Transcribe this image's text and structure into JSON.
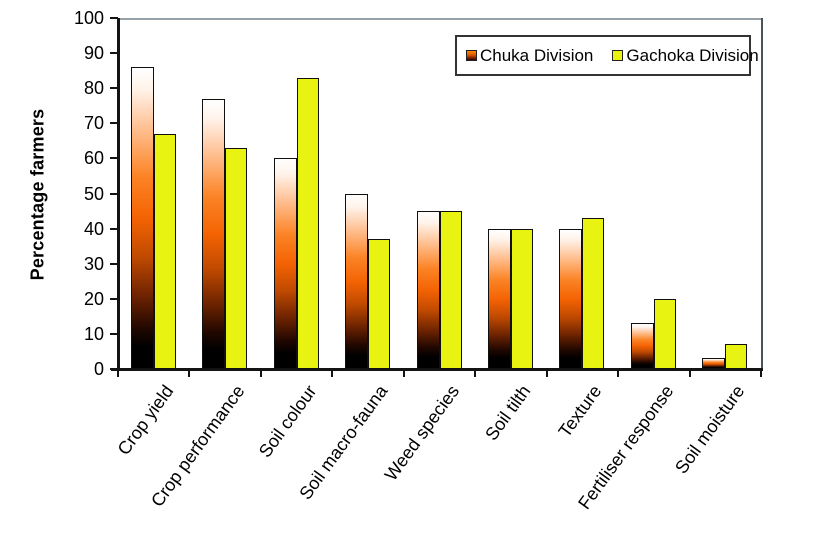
{
  "figure": {
    "background": "#ffffff",
    "axis_color": "#141414",
    "frame_top_color": "#96a1a8",
    "frame_right_color": "#4a5359"
  },
  "chart_data": {
    "type": "bar",
    "title": "",
    "xlabel": "",
    "ylabel": "Percentage farmers",
    "ylim": [
      0,
      100
    ],
    "ytick_step": 10,
    "grid": false,
    "legend_position": "top-right",
    "bar_outline": "#101010",
    "categories": [
      "Crop yield",
      "Crop performance",
      "Soil colour",
      "Soil macro-fauna",
      "Weed species",
      "Soil tilth",
      "Texture",
      "Fertiliser response",
      "Soil moisture"
    ],
    "series": [
      {
        "name": "Chuka Division",
        "values": [
          86,
          77,
          60,
          50,
          45,
          40,
          40,
          13,
          3
        ],
        "fill": "gradient",
        "gradient_stops": [
          {
            "pos": 0,
            "color": "#ffffff"
          },
          {
            "pos": 7,
            "color": "#fff3ea"
          },
          {
            "pos": 20,
            "color": "#ffc092"
          },
          {
            "pos": 36,
            "color": "#fb8426"
          },
          {
            "pos": 50,
            "color": "#f46303"
          },
          {
            "pos": 63,
            "color": "#c04a00"
          },
          {
            "pos": 76,
            "color": "#6e2300"
          },
          {
            "pos": 87,
            "color": "#200700"
          },
          {
            "pos": 93,
            "color": "#000000"
          },
          {
            "pos": 100,
            "color": "#000000"
          }
        ],
        "legend_swatch_gradient": [
          "#ff8a00",
          "#e05500",
          "#300000"
        ]
      },
      {
        "name": "Gachoka Division",
        "values": [
          67,
          63,
          83,
          37,
          45,
          40,
          43,
          20,
          7
        ],
        "fill": "solid",
        "color": "#e8f312",
        "legend_swatch_color": "#e8f312"
      }
    ]
  }
}
